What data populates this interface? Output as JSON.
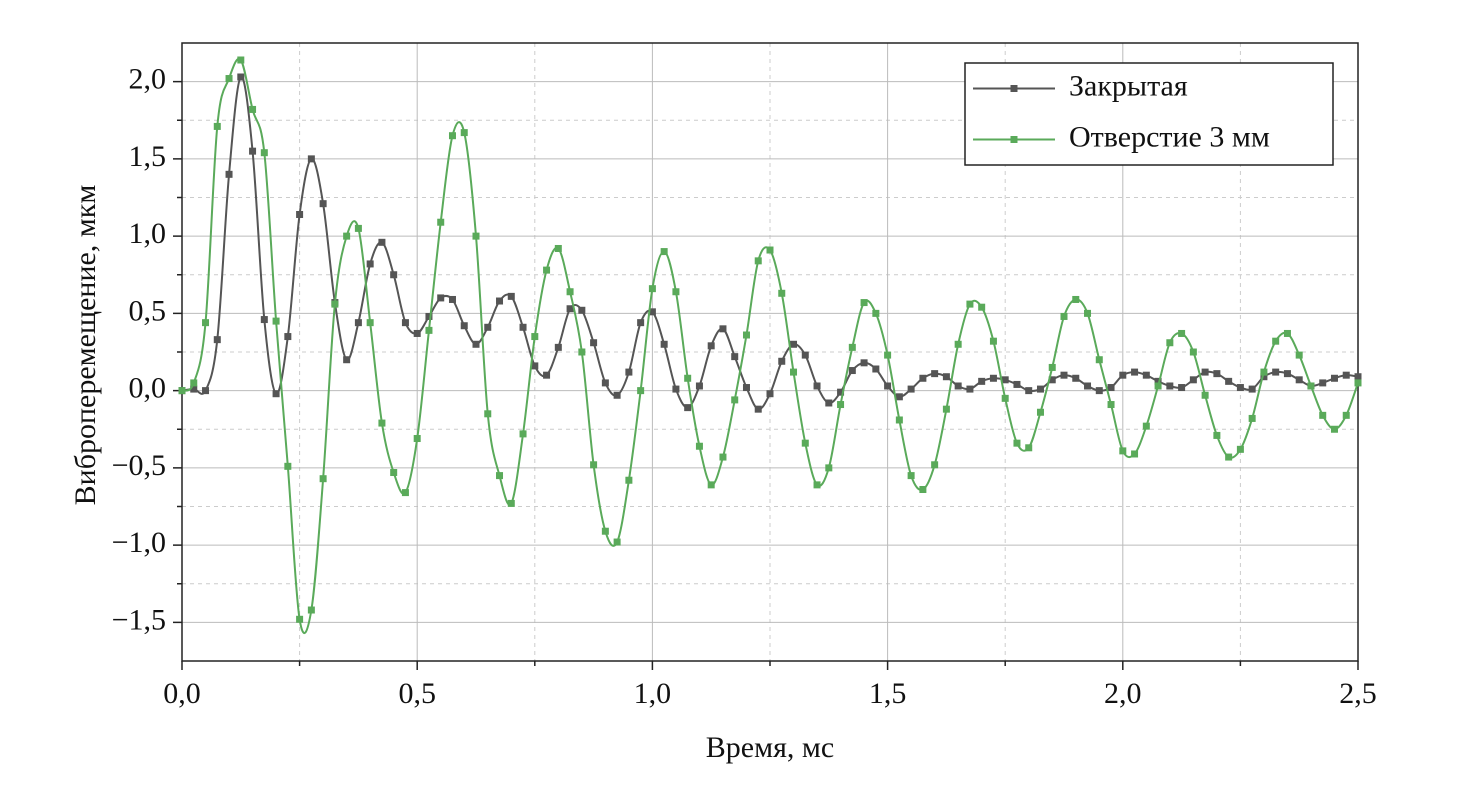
{
  "chart_data": {
    "type": "line",
    "x_label": "Время, мс",
    "y_label": "Виброперемещение, мкм",
    "x": [
      0,
      0.025,
      0.05,
      0.075,
      0.1,
      0.125,
      0.15,
      0.175,
      0.2,
      0.225,
      0.25,
      0.275,
      0.3,
      0.325,
      0.35,
      0.375,
      0.4,
      0.425,
      0.45,
      0.475,
      0.5,
      0.525,
      0.55,
      0.575,
      0.6,
      0.625,
      0.65,
      0.675,
      0.7,
      0.725,
      0.75,
      0.775,
      0.8,
      0.825,
      0.85,
      0.875,
      0.9,
      0.925,
      0.95,
      0.975,
      1.0,
      1.025,
      1.05,
      1.075,
      1.1,
      1.125,
      1.15,
      1.175,
      1.2,
      1.225,
      1.25,
      1.275,
      1.3,
      1.325,
      1.35,
      1.375,
      1.4,
      1.425,
      1.45,
      1.475,
      1.5,
      1.525,
      1.55,
      1.575,
      1.6,
      1.625,
      1.65,
      1.675,
      1.7,
      1.725,
      1.75,
      1.775,
      1.8,
      1.825,
      1.85,
      1.875,
      1.9,
      1.925,
      1.95,
      1.975,
      2.0,
      2.025,
      2.05,
      2.075,
      2.1,
      2.125,
      2.15,
      2.175,
      2.2,
      2.225,
      2.25,
      2.275,
      2.3,
      2.325,
      2.35,
      2.375,
      2.4,
      2.425,
      2.45,
      2.475,
      2.5
    ],
    "series": [
      {
        "name": "Закрытая",
        "color": "#555555",
        "values": [
          0,
          0.01,
          0,
          0.33,
          1.4,
          2.03,
          1.55,
          0.46,
          -0.02,
          0.35,
          1.14,
          1.5,
          1.21,
          0.57,
          0.2,
          0.44,
          0.82,
          0.96,
          0.75,
          0.44,
          0.37,
          0.48,
          0.6,
          0.59,
          0.42,
          0.3,
          0.41,
          0.58,
          0.61,
          0.41,
          0.16,
          0.1,
          0.28,
          0.53,
          0.52,
          0.31,
          0.05,
          -0.03,
          0.12,
          0.44,
          0.51,
          0.3,
          0.01,
          -0.11,
          0.03,
          0.29,
          0.4,
          0.22,
          0.02,
          -0.12,
          -0.02,
          0.19,
          0.3,
          0.23,
          0.03,
          -0.08,
          -0.01,
          0.13,
          0.18,
          0.14,
          0.03,
          -0.04,
          0.01,
          0.08,
          0.11,
          0.09,
          0.03,
          0.01,
          0.06,
          0.08,
          0.07,
          0.04,
          0,
          0.01,
          0.07,
          0.1,
          0.08,
          0.03,
          0,
          0.02,
          0.1,
          0.12,
          0.1,
          0.06,
          0.03,
          0.02,
          0.07,
          0.12,
          0.11,
          0.06,
          0.02,
          0.01,
          0.09,
          0.12,
          0.11,
          0.07,
          0.03,
          0.05,
          0.08,
          0.1,
          0.09
        ]
      },
      {
        "name": "Отверстие 3 мм",
        "color": "#5aaa5a",
        "values": [
          0,
          0.05,
          0.44,
          1.71,
          2.02,
          2.14,
          1.82,
          1.54,
          0.45,
          -0.49,
          -1.48,
          -1.42,
          -0.57,
          0.56,
          1.0,
          1.05,
          0.44,
          -0.21,
          -0.53,
          -0.66,
          -0.31,
          0.39,
          1.09,
          1.65,
          1.67,
          1.0,
          -0.15,
          -0.55,
          -0.73,
          -0.28,
          0.35,
          0.78,
          0.92,
          0.64,
          0.25,
          -0.48,
          -0.91,
          -0.98,
          -0.58,
          0.0,
          0.66,
          0.9,
          0.64,
          0.08,
          -0.36,
          -0.61,
          -0.43,
          -0.06,
          0.36,
          0.84,
          0.91,
          0.63,
          0.12,
          -0.34,
          -0.61,
          -0.5,
          -0.09,
          0.28,
          0.57,
          0.5,
          0.23,
          -0.19,
          -0.55,
          -0.64,
          -0.48,
          -0.12,
          0.3,
          0.56,
          0.54,
          0.32,
          -0.05,
          -0.34,
          -0.37,
          -0.14,
          0.15,
          0.48,
          0.59,
          0.5,
          0.2,
          -0.09,
          -0.39,
          -0.41,
          -0.23,
          0.03,
          0.31,
          0.37,
          0.25,
          -0.03,
          -0.29,
          -0.43,
          -0.38,
          -0.18,
          0.12,
          0.32,
          0.37,
          0.23,
          0.03,
          -0.16,
          -0.25,
          -0.16,
          0.05
        ]
      }
    ],
    "xlim": [
      0,
      2.5
    ],
    "xticks": [
      {
        "value": 0,
        "label": "0,0"
      },
      {
        "value": 0.5,
        "label": "0,5"
      },
      {
        "value": 1.0,
        "label": "1,0"
      },
      {
        "value": 1.5,
        "label": "1,5"
      },
      {
        "value": 2.0,
        "label": "2,0"
      },
      {
        "value": 2.5,
        "label": "2,5"
      }
    ],
    "ylim": [
      -1.75,
      2.25
    ],
    "yticks": [
      {
        "value": -1.5,
        "label": "−1,5"
      },
      {
        "value": -1.0,
        "label": "−1,0"
      },
      {
        "value": -0.5,
        "label": "−0,5"
      },
      {
        "value": 0,
        "label": "0,0"
      },
      {
        "value": 0.5,
        "label": "0,5"
      },
      {
        "value": 1.0,
        "label": "1,0"
      },
      {
        "value": 1.5,
        "label": "1,5"
      },
      {
        "value": 2.0,
        "label": "2,0"
      }
    ],
    "grid": true,
    "legend": "upper right"
  }
}
